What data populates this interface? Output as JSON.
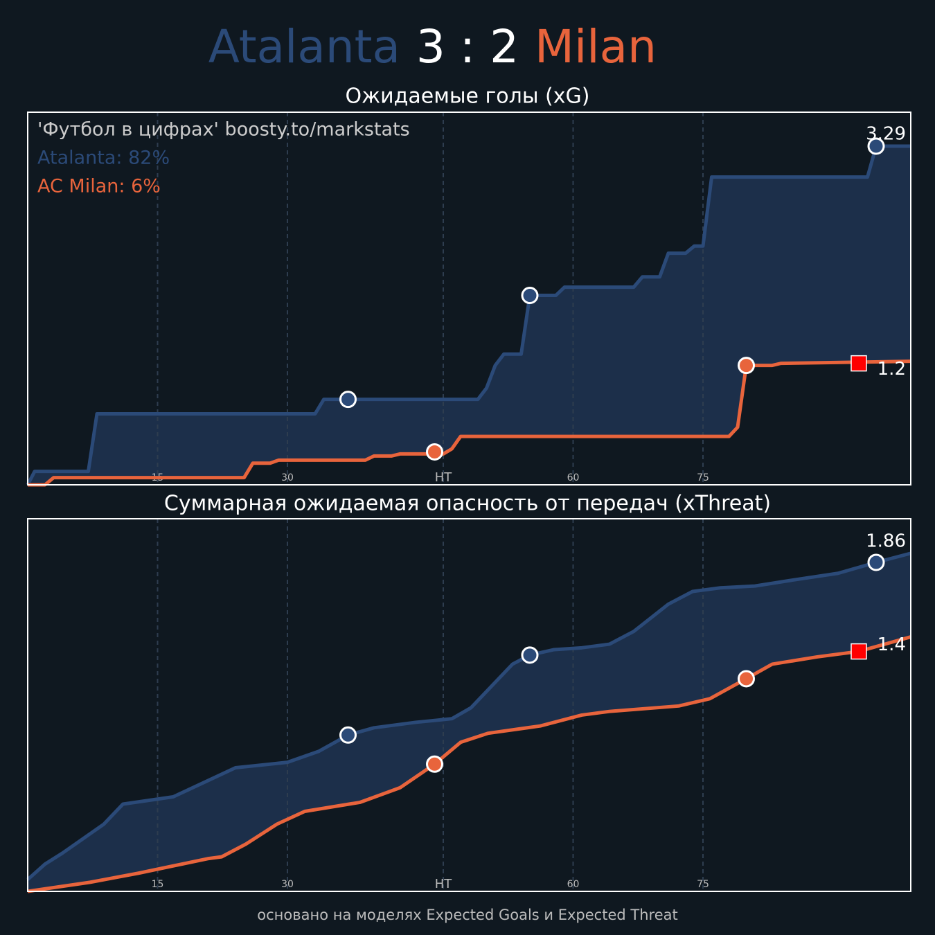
{
  "header": {
    "home": "Atalanta",
    "score": "3 : 2",
    "away": "Milan"
  },
  "footer": "основано на моделях Expected Goals и Expected Threat",
  "chart_data": [
    {
      "type": "line",
      "title": "Ожидаемые голы (xG)",
      "annotations": [
        "'Футбол в цифрах' boosty.to/markstats",
        "Atalanta: 82%",
        "AC Milan: 6%"
      ],
      "xlim": [
        0,
        102
      ],
      "xticks": [
        15,
        30,
        {
          "value": 48,
          "label": "HT"
        },
        {
          "value": 63,
          "label": "60"
        },
        {
          "value": 78,
          "label": "75"
        }
      ],
      "ylim": [
        0,
        3.62
      ],
      "grid": true,
      "series": [
        {
          "color": "#2b4a78",
          "x": [
            0,
            0.8,
            7,
            8,
            33.2,
            34.2,
            52,
            53,
            54,
            55,
            57,
            58,
            61,
            62,
            70,
            71,
            73,
            74,
            76,
            77,
            78,
            79,
            97,
            98,
            102
          ],
          "values": [
            0,
            0.13,
            0.13,
            0.69,
            0.69,
            0.83,
            0.83,
            0.94,
            1.16,
            1.27,
            1.27,
            1.84,
            1.84,
            1.92,
            1.92,
            2.02,
            2.02,
            2.25,
            2.25,
            2.32,
            2.32,
            2.99,
            2.99,
            3.29,
            3.29
          ],
          "total": 3.29,
          "goals": {
            "x": [
              37,
              58,
              98
            ],
            "values": [
              0.83,
              1.84,
              3.29
            ]
          }
        },
        {
          "color": "#e8643c",
          "x": [
            0,
            2,
            3,
            25,
            26,
            28,
            29,
            39,
            40,
            42,
            43,
            48,
            49,
            50,
            81,
            82,
            83,
            86,
            87,
            102
          ],
          "values": [
            0,
            0,
            0.07,
            0.07,
            0.21,
            0.21,
            0.24,
            0.24,
            0.28,
            0.28,
            0.3,
            0.3,
            0.35,
            0.47,
            0.47,
            0.56,
            1.16,
            1.16,
            1.18,
            1.2
          ],
          "total": 1.2,
          "goals": {
            "x": [
              47,
              83
            ],
            "values": [
              0.32,
              1.16
            ]
          },
          "red_cards": {
            "x": [
              96
            ],
            "values": [
              1.18
            ]
          }
        }
      ]
    },
    {
      "type": "line",
      "title": "Суммарная ожидаемая опасность от передач (xThreat)",
      "xlim": [
        0,
        102
      ],
      "xticks": [
        15,
        30,
        {
          "value": 48,
          "label": "HT"
        },
        {
          "value": 63,
          "label": "60"
        },
        {
          "value": 78,
          "label": "75"
        }
      ],
      "ylim": [
        0,
        2.05
      ],
      "grid": true,
      "series": [
        {
          "color": "#2b4a78",
          "x": [
            0,
            2,
            4,
            8.8,
            11,
            16.8,
            24,
            30,
            33.6,
            37,
            40,
            44.8,
            49,
            51.2,
            56,
            58,
            60.8,
            64,
            67.2,
            70,
            74,
            76.8,
            80,
            84,
            88,
            93.6,
            98,
            102
          ],
          "values": [
            0.065,
            0.15,
            0.21,
            0.37,
            0.48,
            0.52,
            0.68,
            0.71,
            0.77,
            0.86,
            0.9,
            0.93,
            0.95,
            1.01,
            1.25,
            1.3,
            1.33,
            1.34,
            1.36,
            1.43,
            1.58,
            1.65,
            1.67,
            1.68,
            1.71,
            1.75,
            1.81,
            1.86
          ],
          "total": 1.86,
          "goals": {
            "x": [
              37,
              58,
              98
            ],
            "values": [
              0.86,
              1.3,
              1.81
            ]
          }
        },
        {
          "color": "#e8643c",
          "x": [
            0,
            7.2,
            12.8,
            20.8,
            22.4,
            25.2,
            28.8,
            32,
            38.4,
            43,
            47,
            50,
            53.2,
            59.2,
            64,
            67.2,
            75.2,
            78.8,
            83,
            86,
            91.2,
            96,
            102
          ],
          "values": [
            0,
            0.05,
            0.1,
            0.18,
            0.19,
            0.26,
            0.37,
            0.44,
            0.49,
            0.57,
            0.7,
            0.82,
            0.87,
            0.91,
            0.97,
            0.99,
            1.02,
            1.06,
            1.17,
            1.25,
            1.29,
            1.32,
            1.4
          ],
          "total": 1.4,
          "goals": {
            "x": [
              47,
              83
            ],
            "values": [
              0.7,
              1.17
            ]
          },
          "red_cards": {
            "x": [
              96
            ],
            "values": [
              1.32
            ]
          }
        }
      ]
    }
  ]
}
